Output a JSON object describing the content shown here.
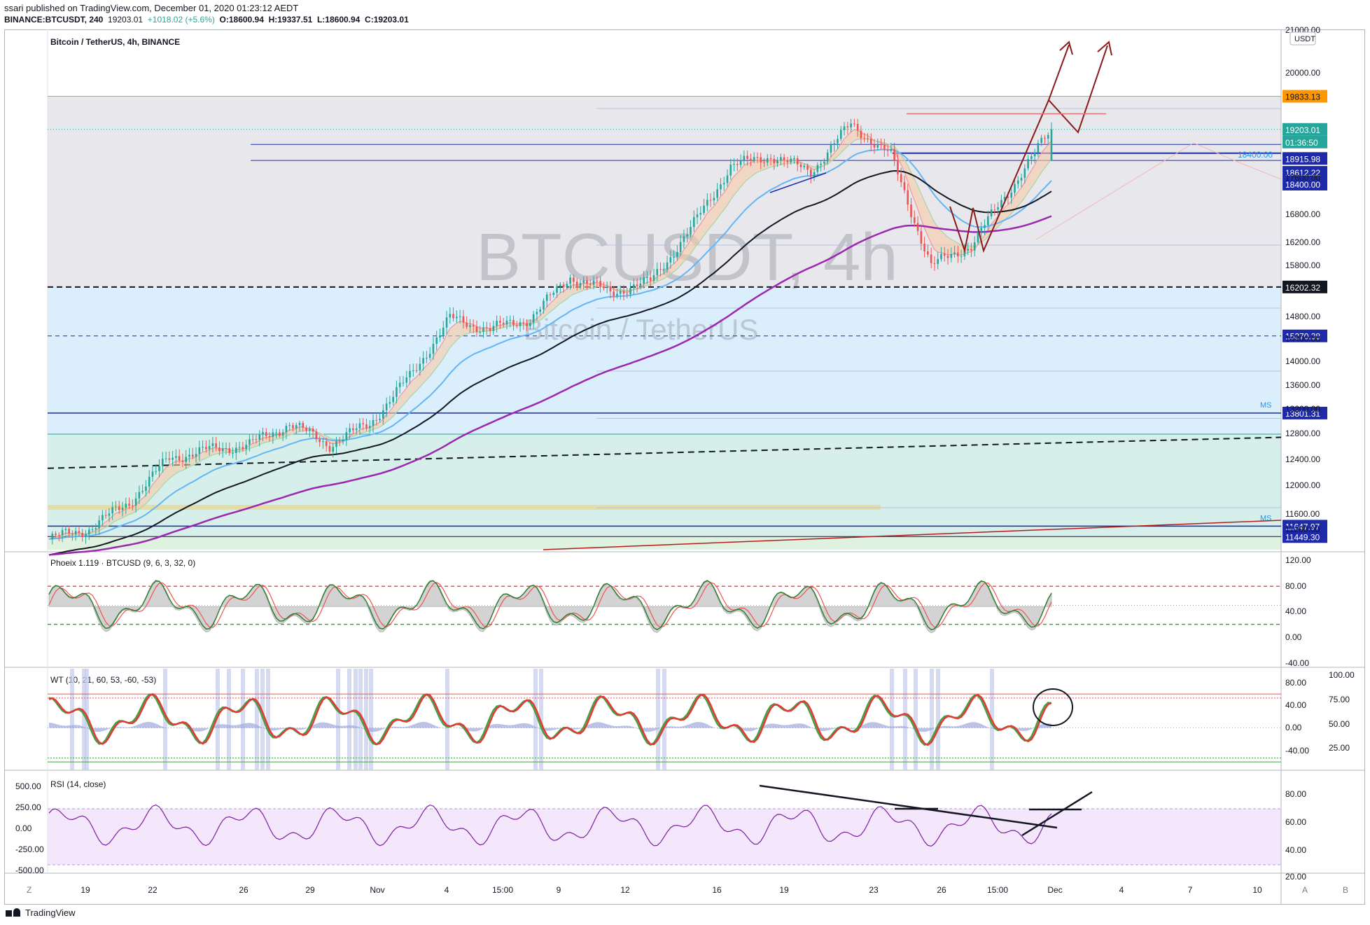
{
  "header": {
    "published": "ssari published on TradingView.com, December 01, 2020 01:23:12 AEDT",
    "symbol": "BINANCE:BTCUSDT, 240",
    "last": "19203.01",
    "change": "+1018.02 (+5.6%)",
    "o": "O:18600.94",
    "h": "H:19337.51",
    "l": "L:18600.94",
    "c": "C:19203.01"
  },
  "main_pane": {
    "legend": "Bitcoin / TetherUS, 4h, BINANCE",
    "watermark_big": "BTCUSDT, 4h",
    "watermark_small": "Bitcoin / TetherUS",
    "currency_badge": "USDT",
    "axis_ticks": [
      "21000.00",
      "20000.00",
      "17600.00",
      "16800.00",
      "16200.00",
      "15800.00",
      "14800.00",
      "14400.00",
      "14000.00",
      "13600.00",
      "13200.00",
      "12800.00",
      "12400.00",
      "12000.00",
      "11600.00",
      "11200.00"
    ],
    "hline_label": "18400.00",
    "ms_label": "MS",
    "price_tags": [
      {
        "text": "19833.13",
        "bg": "#ff9800",
        "fg": "#131722"
      },
      {
        "text": "19203.01",
        "bg": "#26a69a",
        "fg": "#ffffff"
      },
      {
        "text": "01:36:50",
        "bg": "#26a69a",
        "fg": "#ffffff"
      },
      {
        "text": "18915.98",
        "bg": "#1e2aa8",
        "fg": "#ffffff"
      },
      {
        "text": "18612.22",
        "bg": "#1e2aa8",
        "fg": "#ffffff"
      },
      {
        "text": "18400.00",
        "bg": "#1e2aa8",
        "fg": "#ffffff"
      },
      {
        "text": "16202.32",
        "bg": "#131722",
        "fg": "#ffffff"
      },
      {
        "text": "15270.38",
        "bg": "#1e2aa8",
        "fg": "#ffffff"
      },
      {
        "text": "13801.31",
        "bg": "#1e2aa8",
        "fg": "#ffffff"
      },
      {
        "text": "11647.97",
        "bg": "#1e2aa8",
        "fg": "#ffffff"
      },
      {
        "text": "11449.30",
        "bg": "#1e2aa8",
        "fg": "#ffffff"
      }
    ]
  },
  "phoenix_pane": {
    "legend": "Phoeix 1.119 · BTCUSD (9, 6, 3, 32, 0)",
    "axis_ticks": [
      "120.00",
      "80.00",
      "40.00",
      "0.00",
      "-40.00"
    ]
  },
  "wt_pane": {
    "legend": "WT (10, 21, 60, 53, -60, -53)",
    "axis_left": [
      "80.00",
      "40.00",
      "0.00",
      "-40.00"
    ],
    "axis_right": [
      "100.00",
      "75.00",
      "50.00",
      "25.00"
    ]
  },
  "rsi_pane": {
    "legend": "RSI (14, close)",
    "axis_left": [
      "500.00",
      "250.00",
      "0.00",
      "-250.00",
      "-500.00"
    ],
    "axis_right": [
      "80.00",
      "60.00",
      "40.00",
      "20.00"
    ]
  },
  "time_axis": {
    "labels": [
      "19",
      "22",
      "26",
      "29",
      "Nov",
      "4",
      "15:00",
      "9",
      "12",
      "16",
      "19",
      "23",
      "26",
      "15:00",
      "Dec",
      "4",
      "7",
      "10"
    ],
    "left_btn": "Z",
    "right_btn_a": "A",
    "right_btn_b": "B"
  },
  "footer": {
    "brand": "TradingView"
  },
  "colors": {
    "up": "#26a69a",
    "down": "#ef5350",
    "ema_black": "#131722",
    "ema_purple": "#9c27b0",
    "ema_light_blue": "#64b5f6",
    "hline_navy": "#1e2aa8",
    "drawing_dark_red": "#8b1a1a"
  },
  "chart_data": [
    {
      "type": "candlestick",
      "title": "Bitcoin / TetherUS, 4h, BINANCE",
      "ylim": [
        11200,
        21000
      ],
      "x_labels": [
        "19",
        "22",
        "26",
        "29",
        "Nov",
        "4",
        "15:00",
        "9",
        "12",
        "16",
        "19",
        "23",
        "26",
        "15:00",
        "Dec",
        "4",
        "7",
        "10"
      ],
      "anchor_closes": [
        11400,
        11600,
        12100,
        12950,
        13100,
        13200,
        13600,
        13200,
        13600,
        14500,
        15600,
        15400,
        15600,
        16400,
        16100,
        16300,
        17300,
        18500,
        18700,
        18400,
        19300,
        18700,
        16600,
        17000,
        18100,
        19203.01
      ],
      "last_ohlc": {
        "open": 18600.94,
        "high": 19337.51,
        "low": 18600.94,
        "close": 19203.01
      },
      "horizontal_levels": [
        19833.13,
        18915.98,
        18612.22,
        18400.0,
        16202.32,
        15270.38,
        13801.31,
        11647.97,
        11449.3
      ]
    },
    {
      "type": "line",
      "title": "Phoeix 1.119 · BTCUSD (9, 6, 3, 32, 0)",
      "ylim": [
        -40,
        120
      ],
      "levels": [
        80,
        20
      ]
    },
    {
      "type": "line",
      "title": "WT (10, 21, 60, 53, -60, -53)",
      "ylim": [
        -60,
        100
      ],
      "levels": [
        60,
        53,
        -60,
        -53
      ]
    },
    {
      "type": "line",
      "title": "RSI (14, close)",
      "ylim": [
        20,
        90
      ],
      "levels": [
        70,
        30
      ]
    }
  ]
}
